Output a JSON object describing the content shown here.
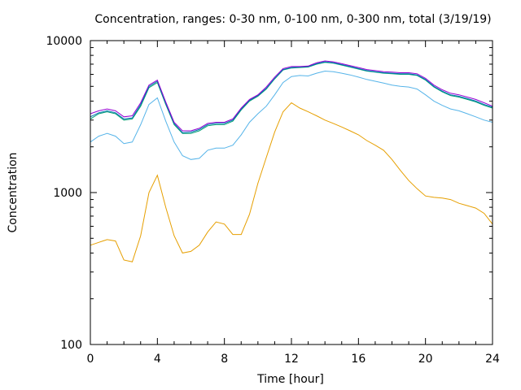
{
  "chart_data": {
    "type": "line",
    "title": "Concentration, ranges: 0-30 nm, 0-100 nm, 0-300 nm, total (3/19/19)",
    "xlabel": "Time [hour]",
    "ylabel": "Concentration",
    "xlim": [
      0,
      24
    ],
    "ylim": [
      100,
      10000
    ],
    "yscale": "log",
    "grid": false,
    "xticks": [
      "0",
      "4",
      "8",
      "12",
      "16",
      "20",
      "24"
    ],
    "yticks": [
      "100",
      "1000",
      "10000"
    ],
    "x": [
      0,
      0.5,
      1,
      1.5,
      2,
      2.5,
      3,
      3.5,
      4,
      4.5,
      5,
      5.5,
      6,
      6.5,
      7,
      7.5,
      8,
      8.5,
      9,
      9.5,
      10,
      10.5,
      11,
      11.5,
      12,
      12.5,
      13,
      13.5,
      14,
      14.5,
      15,
      15.5,
      16,
      16.5,
      17,
      17.5,
      18,
      18.5,
      19,
      19.5,
      20,
      20.5,
      21,
      21.5,
      22,
      22.5,
      23,
      23.5,
      24
    ],
    "series": [
      {
        "color": "#e69f00",
        "values": [
          450,
          470,
          490,
          480,
          360,
          350,
          520,
          1000,
          1300,
          800,
          520,
          400,
          410,
          450,
          550,
          640,
          620,
          530,
          530,
          720,
          1150,
          1700,
          2500,
          3400,
          3900,
          3600,
          3400,
          3200,
          3000,
          2850,
          2700,
          2550,
          2400,
          2200,
          2050,
          1900,
          1650,
          1400,
          1200,
          1060,
          950,
          930,
          920,
          900,
          850,
          820,
          790,
          730,
          620
        ]
      },
      {
        "color": "#56b4e9",
        "values": [
          2150,
          2350,
          2450,
          2350,
          2100,
          2150,
          2800,
          3800,
          4200,
          2950,
          2150,
          1750,
          1650,
          1680,
          1900,
          1960,
          1960,
          2050,
          2400,
          2900,
          3300,
          3700,
          4400,
          5300,
          5800,
          5900,
          5850,
          6100,
          6300,
          6250,
          6100,
          5950,
          5750,
          5550,
          5400,
          5250,
          5100,
          5000,
          4950,
          4800,
          4400,
          4000,
          3750,
          3550,
          3450,
          3300,
          3150,
          3000,
          2900
        ]
      },
      {
        "color": "#009e73",
        "values": [
          3050,
          3300,
          3400,
          3300,
          3000,
          3050,
          3700,
          4900,
          5300,
          3800,
          2800,
          2450,
          2450,
          2550,
          2750,
          2800,
          2800,
          2950,
          3500,
          4000,
          4300,
          4800,
          5600,
          6400,
          6600,
          6650,
          6700,
          7000,
          7200,
          7100,
          6900,
          6700,
          6500,
          6300,
          6200,
          6100,
          6050,
          6000,
          6000,
          5900,
          5500,
          4950,
          4600,
          4350,
          4250,
          4100,
          3950,
          3750,
          3600
        ]
      },
      {
        "color": "#0072b2",
        "values": [
          3150,
          3350,
          3450,
          3350,
          3050,
          3100,
          3800,
          5000,
          5400,
          3850,
          2850,
          2480,
          2500,
          2600,
          2800,
          2850,
          2850,
          3000,
          3550,
          4050,
          4350,
          4850,
          5650,
          6450,
          6650,
          6700,
          6750,
          7050,
          7250,
          7150,
          6950,
          6750,
          6550,
          6350,
          6250,
          6150,
          6100,
          6050,
          6050,
          5950,
          5550,
          5000,
          4650,
          4400,
          4300,
          4150,
          4000,
          3800,
          3650
        ]
      },
      {
        "color": "#9400d3",
        "values": [
          3300,
          3450,
          3550,
          3450,
          3150,
          3200,
          3900,
          5100,
          5500,
          3950,
          2900,
          2550,
          2550,
          2650,
          2850,
          2900,
          2900,
          3050,
          3600,
          4100,
          4400,
          4950,
          5750,
          6550,
          6750,
          6750,
          6800,
          7150,
          7350,
          7250,
          7050,
          6850,
          6650,
          6450,
          6350,
          6250,
          6200,
          6150,
          6150,
          6050,
          5650,
          5100,
          4750,
          4500,
          4400,
          4250,
          4100,
          3900,
          3700
        ]
      }
    ]
  }
}
